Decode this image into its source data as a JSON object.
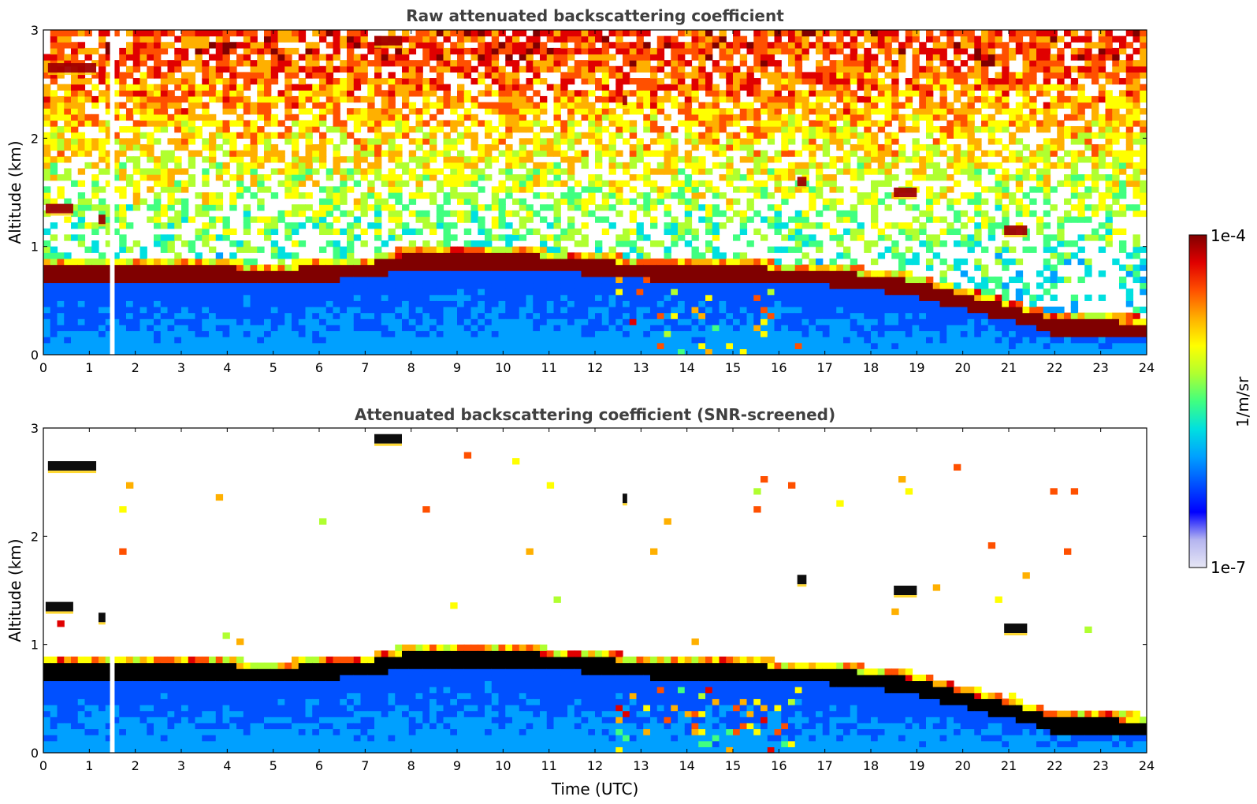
{
  "chart_data": [
    {
      "type": "heatmap",
      "title": "Raw attenuated backscattering coefficient",
      "xlabel": "",
      "ylabel": "Altitude (km)",
      "xlim": [
        0,
        24
      ],
      "ylim": [
        0,
        3
      ],
      "xticks": [
        "0",
        "1",
        "2",
        "3",
        "4",
        "5",
        "6",
        "7",
        "8",
        "9",
        "10",
        "11",
        "12",
        "13",
        "14",
        "15",
        "16",
        "17",
        "18",
        "19",
        "20",
        "21",
        "22",
        "23",
        "24"
      ],
      "yticks": [
        "0",
        "1",
        "2",
        "3"
      ],
      "colorscale": "jet",
      "screened": false,
      "data_gap": [
        1.45,
        1.55
      ],
      "boundary_layer_top": [
        [
          2.9,
          0.75
        ],
        [
          4,
          0.75
        ],
        [
          5,
          0.72
        ],
        [
          6,
          0.77
        ],
        [
          7,
          0.78
        ],
        [
          8,
          0.88
        ],
        [
          9,
          0.88
        ],
        [
          10,
          0.88
        ],
        [
          11,
          0.85
        ],
        [
          12,
          0.82
        ],
        [
          13,
          0.78
        ],
        [
          14,
          0.75
        ],
        [
          15,
          0.76
        ],
        [
          16,
          0.74
        ],
        [
          17,
          0.72
        ],
        [
          18,
          0.68
        ],
        [
          19,
          0.62
        ],
        [
          20,
          0.5
        ],
        [
          21,
          0.4
        ],
        [
          22,
          0.27
        ],
        [
          23,
          0.25
        ],
        [
          24,
          0.24
        ]
      ],
      "cloud_layers": [
        {
          "x": [
            0.1,
            1.15
          ],
          "altitude": 2.65
        },
        {
          "x": [
            0.05,
            0.65
          ],
          "altitude": 1.35
        },
        {
          "x": [
            1.2,
            1.35
          ],
          "altitude": 1.25
        },
        {
          "x": [
            7.2,
            7.8
          ],
          "altitude": 2.9
        },
        {
          "x": [
            12.6,
            12.7
          ],
          "altitude": 2.35
        },
        {
          "x": [
            16.4,
            16.6
          ],
          "altitude": 1.6
        },
        {
          "x": [
            18.5,
            19.0
          ],
          "altitude": 1.5
        },
        {
          "x": [
            20.9,
            21.4
          ],
          "altitude": 1.15
        }
      ]
    },
    {
      "type": "heatmap",
      "title": "Attenuated backscattering coefficient (SNR-screened)",
      "xlabel": "Time (UTC)",
      "ylabel": "Altitude (km)",
      "xlim": [
        0,
        24
      ],
      "ylim": [
        0,
        3
      ],
      "xticks": [
        "0",
        "1",
        "2",
        "3",
        "4",
        "5",
        "6",
        "7",
        "8",
        "9",
        "10",
        "11",
        "12",
        "13",
        "14",
        "15",
        "16",
        "17",
        "18",
        "19",
        "20",
        "21",
        "22",
        "23",
        "24"
      ],
      "yticks": [
        "0",
        "1",
        "2",
        "3"
      ],
      "colorscale": "jet",
      "screened": true,
      "data_gap": [
        1.45,
        1.55
      ]
    }
  ],
  "colorbar": {
    "label": "1/m/sr",
    "max_label": "1e-4",
    "min_label": "1e-7",
    "colors": [
      "#e6e6f5",
      "#b4b4f0",
      "#0000ff",
      "#0050ff",
      "#00a0ff",
      "#00e0e0",
      "#40ff80",
      "#b0ff30",
      "#ffff00",
      "#ffb000",
      "#ff5000",
      "#e00000",
      "#800000"
    ]
  }
}
